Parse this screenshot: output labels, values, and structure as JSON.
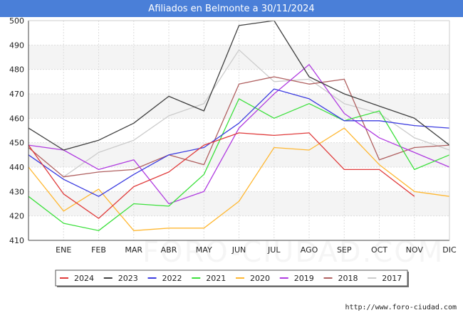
{
  "title": "Afiliados en Belmonte a 30/11/2024",
  "source": "http://www.foro-ciudad.com",
  "watermark": "FORO-CIUDAD.COM",
  "chart_data": {
    "type": "line",
    "title": "Afiliados en Belmonte a 30/11/2024",
    "x": [
      "",
      "ENE",
      "FEB",
      "MAR",
      "ABR",
      "MAY",
      "JUN",
      "JUL",
      "AGO",
      "SEP",
      "OCT",
      "NOV",
      "DIC"
    ],
    "ylim": [
      410,
      500
    ],
    "yticks": [
      410,
      420,
      430,
      440,
      450,
      460,
      470,
      480,
      490,
      500
    ],
    "grid": true,
    "legend_position": "bottom",
    "series": [
      {
        "name": "2024",
        "color": "#e03c3c",
        "values": [
          449,
          429,
          419,
          432,
          438,
          449,
          454,
          453,
          454,
          439,
          439,
          428,
          null
        ]
      },
      {
        "name": "2023",
        "color": "#404040",
        "values": [
          456,
          447,
          451,
          458,
          469,
          463,
          498,
          500,
          477,
          470,
          465,
          460,
          449
        ]
      },
      {
        "name": "2022",
        "color": "#3c3ce0",
        "values": [
          445,
          435,
          428,
          437,
          445,
          448,
          458,
          472,
          468,
          459,
          459,
          457,
          456
        ]
      },
      {
        "name": "2021",
        "color": "#3ce03c",
        "values": [
          428,
          417,
          414,
          425,
          424,
          437,
          468,
          460,
          466,
          459,
          463,
          439,
          445
        ]
      },
      {
        "name": "2020",
        "color": "#ffb833",
        "values": [
          440,
          422,
          431,
          414,
          415,
          415,
          426,
          448,
          447,
          456,
          441,
          430,
          428
        ]
      },
      {
        "name": "2019",
        "color": "#b03ce0",
        "values": [
          449,
          447,
          439,
          443,
          425,
          430,
          456,
          470,
          482,
          462,
          452,
          446,
          440
        ]
      },
      {
        "name": "2018",
        "color": "#b06060",
        "values": [
          448,
          436,
          438,
          439,
          445,
          441,
          474,
          477,
          474,
          476,
          443,
          448,
          449
        ]
      },
      {
        "name": "2017",
        "color": "#cccccc",
        "values": [
          null,
          436,
          446,
          451,
          461,
          466,
          488,
          475,
          476,
          466,
          462,
          452,
          447
        ]
      }
    ]
  }
}
